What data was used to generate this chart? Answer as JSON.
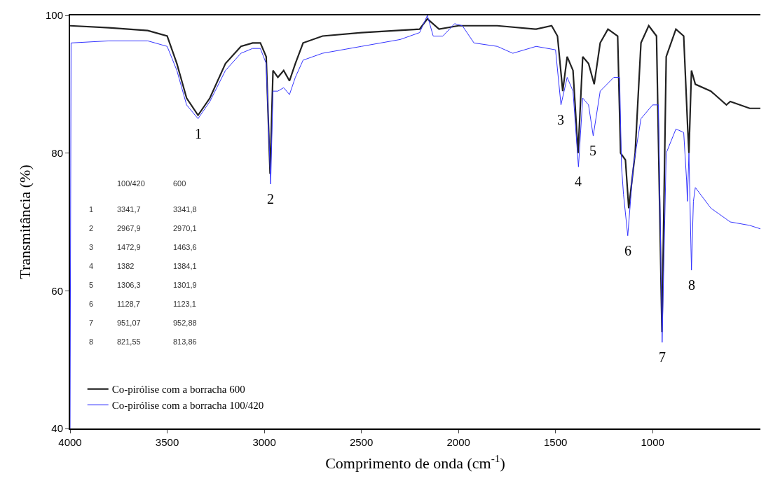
{
  "chart_data": {
    "type": "line",
    "xlabel": "Comprimento de onda (cm$^{-1}$)",
    "ylabel": "Transmitância (%)",
    "xlim": [
      4000,
      445
    ],
    "xticks": [
      4000,
      3500,
      3000,
      2500,
      2000,
      1500,
      1000
    ],
    "ylim": [
      40,
      100
    ],
    "yticks": [
      40,
      60,
      80,
      100
    ],
    "legend": "bottom left",
    "marker": "none",
    "line_style": "solid",
    "series": [
      {
        "name": "Co-pirólise com a borracha 600",
        "color": "#222222",
        "x": [
          4000,
          3800,
          3600,
          3500,
          3450,
          3400,
          3341,
          3280,
          3200,
          3120,
          3060,
          3020,
          2990,
          2970,
          2955,
          2930,
          2900,
          2870,
          2840,
          2800,
          2700,
          2500,
          2200,
          2160,
          2100,
          2000,
          1800,
          1600,
          1520,
          1490,
          1463,
          1440,
          1410,
          1384,
          1360,
          1330,
          1301,
          1270,
          1230,
          1180,
          1165,
          1140,
          1123,
          1090,
          1060,
          1020,
          980,
          952,
          930,
          880,
          840,
          820,
          813,
          800,
          780,
          700,
          620,
          600,
          500,
          445
        ],
        "values": [
          98.5,
          98.2,
          97.8,
          97,
          93,
          88,
          85.5,
          88,
          93,
          95.5,
          96,
          96,
          94,
          77,
          92,
          91,
          92,
          90.5,
          93,
          96,
          97,
          97.5,
          98,
          99.5,
          98,
          98.5,
          98.5,
          98,
          98.5,
          97,
          89,
          94,
          92,
          80,
          94,
          93,
          90,
          96,
          98,
          97,
          80,
          79,
          72,
          80,
          96,
          98.5,
          97,
          54,
          94,
          98,
          97,
          84,
          80,
          92,
          90,
          89,
          87,
          87.5,
          86.5,
          86.5
        ]
      },
      {
        "name": "Co-pirólise com a borracha 100/420",
        "color": "#3333ff",
        "x": [
          4000,
          3995,
          3800,
          3600,
          3500,
          3450,
          3400,
          3341,
          3280,
          3200,
          3120,
          3060,
          3020,
          2990,
          2967,
          2955,
          2930,
          2900,
          2870,
          2840,
          2800,
          2700,
          2500,
          2300,
          2200,
          2160,
          2130,
          2080,
          2020,
          1980,
          1920,
          1800,
          1720,
          1600,
          1500,
          1472,
          1440,
          1410,
          1382,
          1360,
          1330,
          1306,
          1270,
          1200,
          1170,
          1160,
          1150,
          1128,
          1100,
          1060,
          1000,
          970,
          951,
          930,
          880,
          840,
          825,
          821,
          813,
          800,
          790,
          780,
          700,
          600,
          500,
          445
        ],
        "values": [
          40,
          96,
          96.3,
          96.3,
          95.5,
          92,
          87,
          85,
          87.5,
          92,
          94.5,
          95.2,
          95.2,
          93,
          75.5,
          89,
          89,
          89.5,
          88.5,
          91,
          93.5,
          94.5,
          95.5,
          96.5,
          97.5,
          100,
          97,
          97,
          98.8,
          98.5,
          96,
          95.5,
          94.5,
          95.5,
          95,
          87,
          91,
          89,
          78,
          88,
          87,
          82.5,
          89,
          91,
          91,
          78,
          74,
          68,
          78,
          85,
          87,
          87,
          52.5,
          80,
          83.5,
          83,
          76,
          73,
          80,
          63,
          73,
          75,
          72,
          70,
          69.5,
          69
        ]
      }
    ],
    "annotations": [
      {
        "text": "1",
        "x": 3341,
        "y": 85
      },
      {
        "text": "2",
        "x": 2967,
        "y": 75.5
      },
      {
        "text": "3",
        "x": 1472,
        "y": 87
      },
      {
        "text": "4",
        "x": 1382,
        "y": 78
      },
      {
        "text": "5",
        "x": 1306,
        "y": 82.5
      },
      {
        "text": "6",
        "x": 1128,
        "y": 68
      },
      {
        "text": "7",
        "x": 951,
        "y": 52.5
      },
      {
        "text": "8",
        "x": 800,
        "y": 63
      },
      "100/420",
      "600",
      "1",
      "3341,7",
      "3341,8",
      "2",
      "2967,9",
      "2970,1",
      "3",
      "1472,9",
      "1463,6",
      "4",
      "1382",
      "1384,1",
      "5",
      "1306,3",
      "1301,9",
      "6",
      "1128,7",
      "1123,1",
      "7",
      "951,07",
      "952,88",
      "8",
      "821,55",
      "813,86"
    ]
  }
}
